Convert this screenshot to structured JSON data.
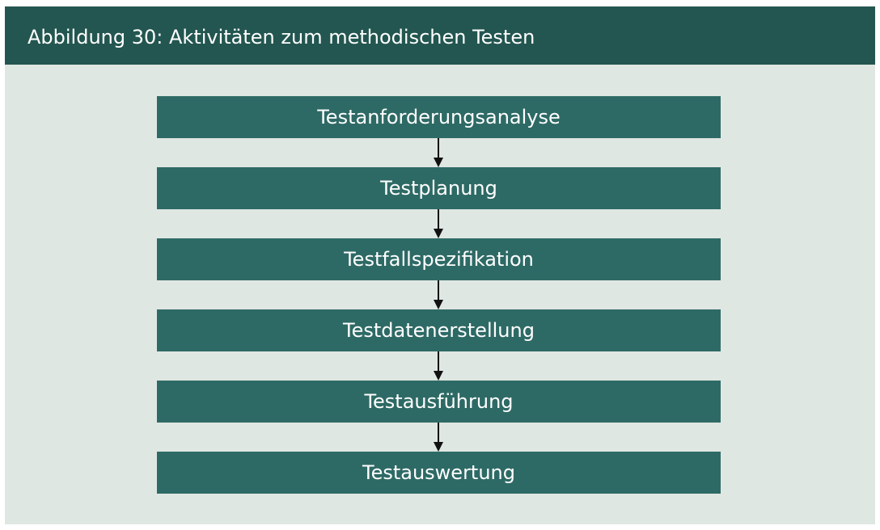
{
  "title": "Abbildung 30: Aktivitäten zum methodischen Testen",
  "colors": {
    "header_bg": "#235650",
    "panel_bg": "#dfe7e2",
    "step_bg": "#2e6a65",
    "step_text": "#ffffff",
    "arrow": "#111111"
  },
  "steps": [
    "Testanforderungsanalyse",
    "Testplanung",
    "Testfallspezifikation",
    "Testdatenerstellung",
    "Testausführung",
    "Testauswertung"
  ]
}
